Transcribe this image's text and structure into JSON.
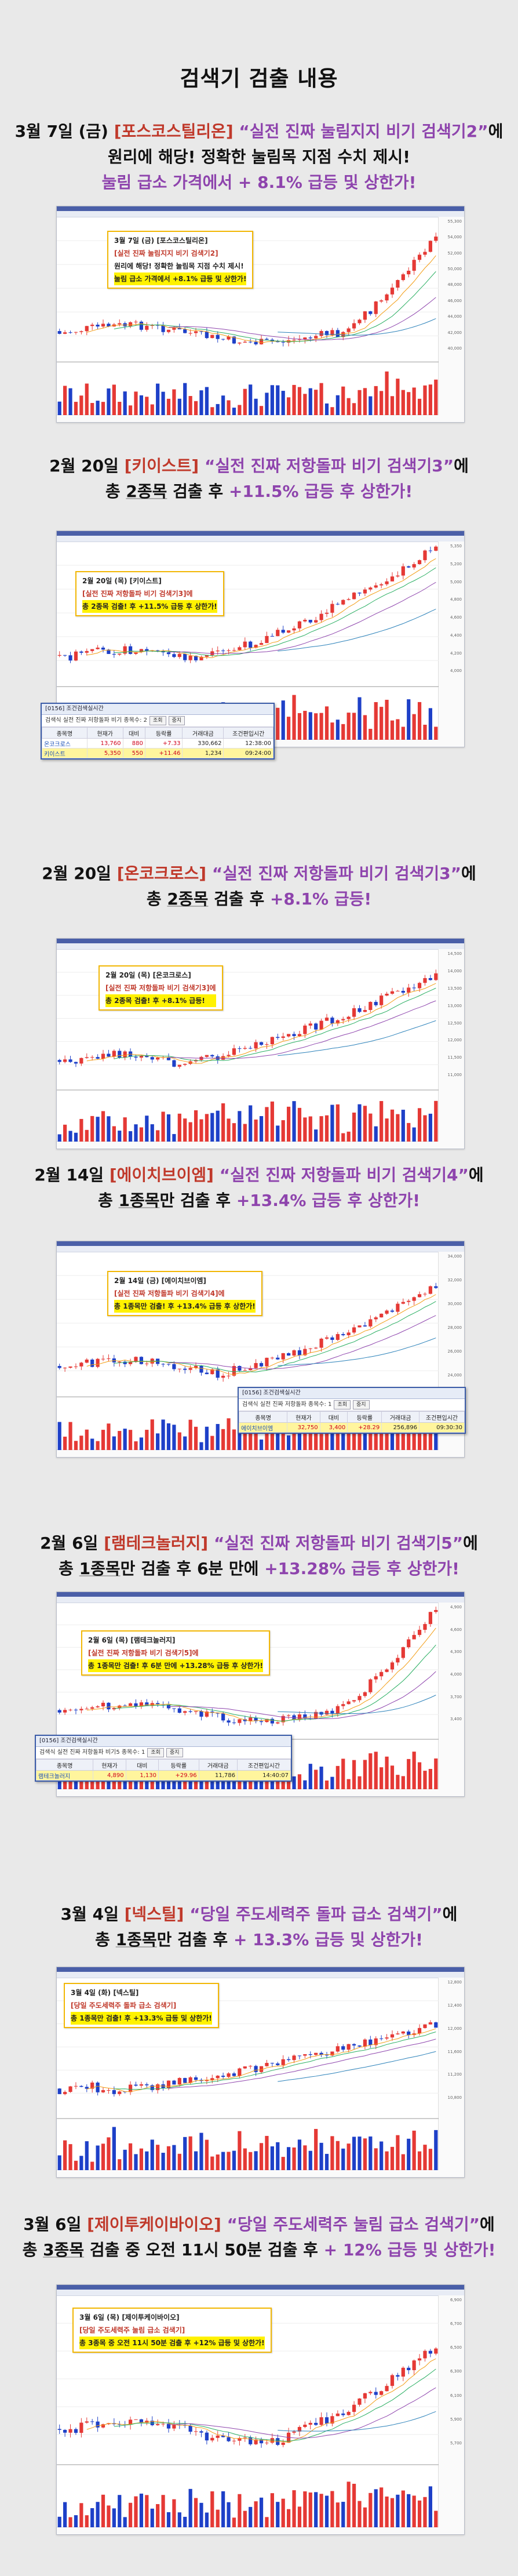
{
  "title": "검색기 검출 내용",
  "sections": [
    {
      "head": {
        "l1_pre": "3월 7일 (금) ",
        "l1_brand": "[포스코스틸리온]",
        "l1_q": " “실전 진짜 눌림지지 비기 검색기2”",
        "l1_post": "에",
        "l2": "원리에 해당! 정확한 눌림목 지점 수치 제시!",
        "l3": "눌림 급소 가격에서 + 8.1% 급등 및 상한가!"
      },
      "note": [
        "3월 7일 (금) [포스코스틸리온]",
        "[실전 진짜 눌림지지 비기 검색기2]",
        "원리에 해당! 정확한 눌림목 지점 수치 제시!",
        "눌림 급소 가격에서 +8.1% 급등 및 상한가!"
      ],
      "axis": [
        "55,300",
        "54,000",
        "52,000",
        "50,000",
        "48,000",
        "46,000",
        "44,000",
        "42,000",
        "40,000"
      ]
    },
    {
      "head": {
        "l1_pre": "2월 20일 ",
        "l1_brand": "[키이스트]",
        "l1_q": " “실전 진짜 저항돌파 비기 검색기3”",
        "l1_post": "에",
        "l2_pre": "총 ",
        "l2_num": "2종목",
        "l2_mid": " 검출 후 ",
        "l2_hl": "+11.5% 급등 후 상한가!"
      },
      "note": [
        "2월 20일 (목) [키이스트]",
        "[실전 진짜 저항돌파 비기 검색기3]에",
        "총 2종목 검출! 후 +11.5% 급등 후 상한가!"
      ],
      "panel": {
        "title": "[0156] 조건검색실시간",
        "ctrl": "검색식 실전 진짜 저항돌파 비기  종목수: 2",
        "btns": [
          "조회",
          "중지"
        ],
        "headers": [
          "종목명",
          "현재가",
          "대비",
          "등락률",
          "거래대금",
          "조건편입시간"
        ],
        "rows": [
          [
            "온코크로스",
            "13,760",
            "880",
            "+7.33",
            "330,662",
            "12:38:00"
          ],
          [
            "키이스트",
            "5,350",
            "550",
            "+11.46",
            "1,234",
            "09:24:00"
          ]
        ]
      },
      "axis": [
        "5,350",
        "5,200",
        "5,000",
        "4,800",
        "4,600",
        "4,400",
        "4,200",
        "4,000"
      ]
    },
    {
      "head": {
        "l1_pre": "2월 20일 ",
        "l1_brand": "[온코크로스]",
        "l1_q": " “실전 진짜 저항돌파 비기 검색기3”",
        "l1_post": "에",
        "l2_pre": "총 ",
        "l2_num": "2종목",
        "l2_mid": " 검출 후 ",
        "l2_hl": "+8.1% 급등!"
      },
      "note": [
        "2월 20일 (목) [온코크로스]",
        "[실전 진짜 저항돌파 비기 검색기3]에",
        "총 2종목 검출! 후 +8.1% 급등!"
      ],
      "axis": [
        "14,500",
        "14,000",
        "13,500",
        "13,000",
        "12,500",
        "12,000",
        "11,500",
        "11,000"
      ]
    },
    {
      "head": {
        "l1_pre": "2월 14일 ",
        "l1_brand": "[에이치브이엠]",
        "l1_q": " “실전 진짜 저항돌파 비기 검색기4”",
        "l1_post": "에",
        "l2_pre": "총 ",
        "l2_num": "1종목",
        "l2_mid": "만 검출 후 ",
        "l2_hl": "+13.4% 급등 후 상한가!"
      },
      "note": [
        "2월 14일 (금) [에이치브이엠]",
        "[실전 진짜 저항돌파 비기 검색기4]에",
        "총 1종목만 검출! 후 +13.4% 급등 후 상한가!"
      ],
      "panel": {
        "title": "[0156] 조건검색실시간",
        "ctrl": "검색식 실전 진짜 저항돌파  종목수: 1",
        "btns": [
          "조회",
          "중지"
        ],
        "headers": [
          "종목명",
          "현재가",
          "대비",
          "등락률",
          "거래대금",
          "조건편입시간"
        ],
        "rows": [
          [
            "에이치브이엠",
            "32,750",
            "3,400",
            "+28.29",
            "256,896",
            "09:30:30"
          ]
        ]
      },
      "axis": [
        "34,000",
        "32,000",
        "30,000",
        "28,000",
        "26,000",
        "24,000"
      ]
    },
    {
      "head": {
        "l1_pre": "2월 6일 ",
        "l1_brand": "[램테크놀러지]",
        "l1_q": " “실전 진짜 저항돌파 비기 검색기5”",
        "l1_post": "에",
        "l2_pre": "총 ",
        "l2_num": "1종목",
        "l2_mid": "만 검출 후 6분 만에 ",
        "l2_hl": "+13.28% 급등 후 상한가!"
      },
      "note": [
        "2월 6일 (목) [램테크놀러지]",
        "[실전 진짜 저항돌파 비기 검색기5]에",
        "총 1종목만 검출! 후 6분 만에 +13.28% 급등 후 상한가!"
      ],
      "panel": {
        "title": "[0156] 조건검색실시간",
        "ctrl": "검색식 실전 진짜 저항돌파 비기5  종목수: 1",
        "btns": [
          "조회",
          "중지"
        ],
        "headers": [
          "종목명",
          "현재가",
          "대비",
          "등락률",
          "거래대금",
          "조건편입시간"
        ],
        "rows": [
          [
            "램테크놀러지",
            "4,890",
            "1,130",
            "+29.96",
            "11,786",
            "14:40:07"
          ]
        ]
      },
      "axis": [
        "4,900",
        "4,600",
        "4,300",
        "4,000",
        "3,700",
        "3,400"
      ]
    },
    {
      "head": {
        "l1_pre": "3월 4일 ",
        "l1_brand": "[넥스틸]",
        "l1_q": " “당일 주도세력주 돌파 급소 검색기”",
        "l1_post": "에",
        "l2_pre": "총 ",
        "l2_num": "1종목",
        "l2_mid": "만 검출 후 ",
        "l2_hl": "+ 13.3% 급등 및 상한가!"
      },
      "note": [
        "3월 4일 (화) [넥스틸]",
        "[당일 주도세력주 돌파 급소 검색기]",
        "총 1종목만 검출! 후 +13.3% 급등 및 상한가!"
      ],
      "axis": [
        "12,800",
        "12,400",
        "12,000",
        "11,600",
        "11,200",
        "10,800"
      ]
    },
    {
      "head": {
        "l1_pre": "3월 6일 ",
        "l1_brand": "[제이투케이바이오]",
        "l1_q": " “당일 주도세력주 눌림 급소 검색기”",
        "l1_post": "에",
        "l2_pre": "총 ",
        "l2_num": "3종목",
        "l2_mid": " 검출 중 오전 11시 50분 검출 후 ",
        "l2_hl": "+ 12% 급등 및 상한가!"
      },
      "note": [
        "3월 6일 (목) [제이투케이바이오]",
        "[당일 주도세력주 눌림 급소 검색기]",
        "총 3종목 중 오전 11시 50분 검출 후 +12% 급등 및 상한가!"
      ],
      "axis": [
        "6,900",
        "6,700",
        "6,500",
        "6,300",
        "6,100",
        "5,900",
        "5,700"
      ]
    }
  ],
  "colors": {
    "brand": "#c0392b",
    "quote": "#8e44ad",
    "note_border": "#f2b705",
    "candle_up": "#e53935",
    "candle_down": "#1e40c8",
    "window_bar": "#4a5fa8"
  }
}
